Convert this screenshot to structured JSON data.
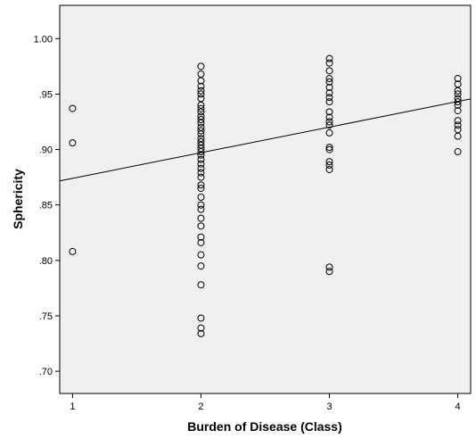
{
  "chart_data": {
    "type": "scatter",
    "title": "",
    "xlabel": "Burden of Disease (Class)",
    "ylabel": "Sphericity",
    "xlim": [
      0.9,
      4.1
    ],
    "ylim": [
      0.68,
      1.03
    ],
    "xticks": [
      1,
      2,
      3,
      4
    ],
    "yticks": [
      0.7,
      0.75,
      0.8,
      0.85,
      0.9,
      0.95,
      1.0
    ],
    "xtick_labels": [
      "1",
      "2",
      "3",
      "4"
    ],
    "ytick_labels": [
      ".70",
      ".75",
      ".80",
      ".85",
      ".90",
      ".95",
      "1.00"
    ],
    "grid": false,
    "legend": "none",
    "background_color": "#f0f0f0",
    "fit_line": {
      "slope": 0.0231,
      "intercept": 0.8509
    },
    "series": [
      {
        "points": [
          {
            "x": 1,
            "y": 0.937
          },
          {
            "x": 1,
            "y": 0.906
          },
          {
            "x": 1,
            "y": 0.808
          },
          {
            "x": 2,
            "y": 0.975
          },
          {
            "x": 2,
            "y": 0.968
          },
          {
            "x": 2,
            "y": 0.962
          },
          {
            "x": 2,
            "y": 0.957
          },
          {
            "x": 2,
            "y": 0.953
          },
          {
            "x": 2,
            "y": 0.95
          },
          {
            "x": 2,
            "y": 0.946
          },
          {
            "x": 2,
            "y": 0.94
          },
          {
            "x": 2,
            "y": 0.937
          },
          {
            "x": 2,
            "y": 0.934
          },
          {
            "x": 2,
            "y": 0.93
          },
          {
            "x": 2,
            "y": 0.927
          },
          {
            "x": 2,
            "y": 0.924
          },
          {
            "x": 2,
            "y": 0.92
          },
          {
            "x": 2,
            "y": 0.917
          },
          {
            "x": 2,
            "y": 0.914
          },
          {
            "x": 2,
            "y": 0.91
          },
          {
            "x": 2,
            "y": 0.907
          },
          {
            "x": 2,
            "y": 0.904
          },
          {
            "x": 2,
            "y": 0.901
          },
          {
            "x": 2,
            "y": 0.898
          },
          {
            "x": 2,
            "y": 0.895
          },
          {
            "x": 2,
            "y": 0.891
          },
          {
            "x": 2,
            "y": 0.887
          },
          {
            "x": 2,
            "y": 0.883
          },
          {
            "x": 2,
            "y": 0.879
          },
          {
            "x": 2,
            "y": 0.875
          },
          {
            "x": 2,
            "y": 0.868
          },
          {
            "x": 2,
            "y": 0.865
          },
          {
            "x": 2,
            "y": 0.857
          },
          {
            "x": 2,
            "y": 0.85
          },
          {
            "x": 2,
            "y": 0.846
          },
          {
            "x": 2,
            "y": 0.838
          },
          {
            "x": 2,
            "y": 0.831
          },
          {
            "x": 2,
            "y": 0.821
          },
          {
            "x": 2,
            "y": 0.816
          },
          {
            "x": 2,
            "y": 0.805
          },
          {
            "x": 2,
            "y": 0.795
          },
          {
            "x": 2,
            "y": 0.778
          },
          {
            "x": 2,
            "y": 0.748
          },
          {
            "x": 2,
            "y": 0.739
          },
          {
            "x": 2,
            "y": 0.734
          },
          {
            "x": 3,
            "y": 0.982
          },
          {
            "x": 3,
            "y": 0.978
          },
          {
            "x": 3,
            "y": 0.971
          },
          {
            "x": 3,
            "y": 0.964
          },
          {
            "x": 3,
            "y": 0.961
          },
          {
            "x": 3,
            "y": 0.956
          },
          {
            "x": 3,
            "y": 0.951
          },
          {
            "x": 3,
            "y": 0.947
          },
          {
            "x": 3,
            "y": 0.943
          },
          {
            "x": 3,
            "y": 0.934
          },
          {
            "x": 3,
            "y": 0.929
          },
          {
            "x": 3,
            "y": 0.925
          },
          {
            "x": 3,
            "y": 0.922
          },
          {
            "x": 3,
            "y": 0.915
          },
          {
            "x": 3,
            "y": 0.902
          },
          {
            "x": 3,
            "y": 0.9
          },
          {
            "x": 3,
            "y": 0.889
          },
          {
            "x": 3,
            "y": 0.886
          },
          {
            "x": 3,
            "y": 0.882
          },
          {
            "x": 3,
            "y": 0.794
          },
          {
            "x": 3,
            "y": 0.79
          },
          {
            "x": 4,
            "y": 0.964
          },
          {
            "x": 4,
            "y": 0.959
          },
          {
            "x": 4,
            "y": 0.953
          },
          {
            "x": 4,
            "y": 0.95
          },
          {
            "x": 4,
            "y": 0.946
          },
          {
            "x": 4,
            "y": 0.943
          },
          {
            "x": 4,
            "y": 0.94
          },
          {
            "x": 4,
            "y": 0.935
          },
          {
            "x": 4,
            "y": 0.926
          },
          {
            "x": 4,
            "y": 0.922
          },
          {
            "x": 4,
            "y": 0.918
          },
          {
            "x": 4,
            "y": 0.912
          },
          {
            "x": 4,
            "y": 0.898
          }
        ]
      }
    ]
  }
}
